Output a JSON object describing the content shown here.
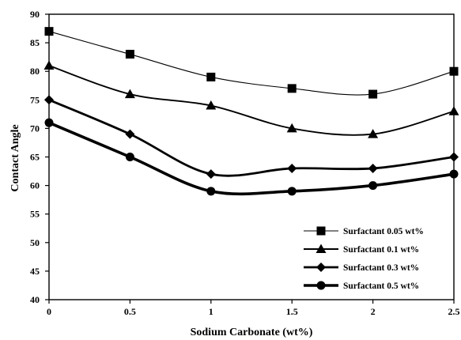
{
  "chart_data": {
    "type": "line",
    "xlabel": "Sodium Carbonate (wt%)",
    "ylabel": "Contact Angle",
    "x": [
      0,
      0.5,
      1,
      1.5,
      2,
      2.5
    ],
    "x_tick_labels": [
      "0",
      "0.5",
      "1",
      "1.5",
      "2",
      "2.5"
    ],
    "xlim": [
      0,
      2.5
    ],
    "ylim": [
      40,
      90
    ],
    "y_ticks": [
      40,
      45,
      50,
      55,
      60,
      65,
      70,
      75,
      80,
      85,
      90
    ],
    "grid": false,
    "legend_position": "bottom-right",
    "series": [
      {
        "name": "Surfactant 0.05 wt%",
        "marker": "square",
        "line_weight": "thin",
        "values": [
          87,
          83,
          79,
          77,
          76,
          80
        ]
      },
      {
        "name": "Surfactant 0.1 wt%",
        "marker": "triangle",
        "line_weight": "medium",
        "values": [
          81,
          76,
          74,
          70,
          69,
          73
        ]
      },
      {
        "name": "Surfactant 0.3 wt%",
        "marker": "diamond",
        "line_weight": "thick",
        "values": [
          75,
          69,
          62,
          63,
          63,
          65
        ]
      },
      {
        "name": "Surfactant 0.5 wt%",
        "marker": "circle",
        "line_weight": "thickest",
        "values": [
          71,
          65,
          59,
          59,
          60,
          62
        ]
      }
    ],
    "color": "#000000"
  }
}
